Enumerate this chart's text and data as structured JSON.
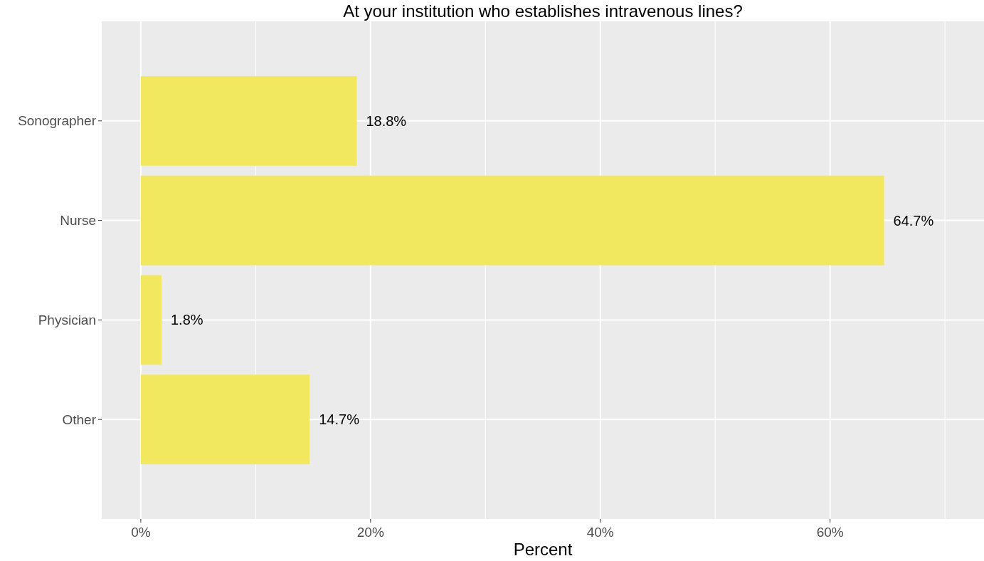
{
  "chart_data": {
    "type": "bar",
    "orientation": "horizontal",
    "title": "At your institution who establishes intravenous lines?",
    "xlabel": "Percent",
    "categories": [
      "Sonographer",
      "Nurse",
      "Physician",
      "Other"
    ],
    "values": [
      18.8,
      64.7,
      1.8,
      14.7
    ],
    "value_labels": [
      "18.8%",
      "64.7%",
      "1.8%",
      "14.7%"
    ],
    "color": "#f2e85f",
    "xlim": [
      -3.4,
      73.4
    ],
    "xticks": [
      {
        "value": 0,
        "label": "0%"
      },
      {
        "value": 20,
        "label": "20%"
      },
      {
        "value": 40,
        "label": "40%"
      },
      {
        "value": 60,
        "label": "60%"
      }
    ],
    "grid": true
  }
}
